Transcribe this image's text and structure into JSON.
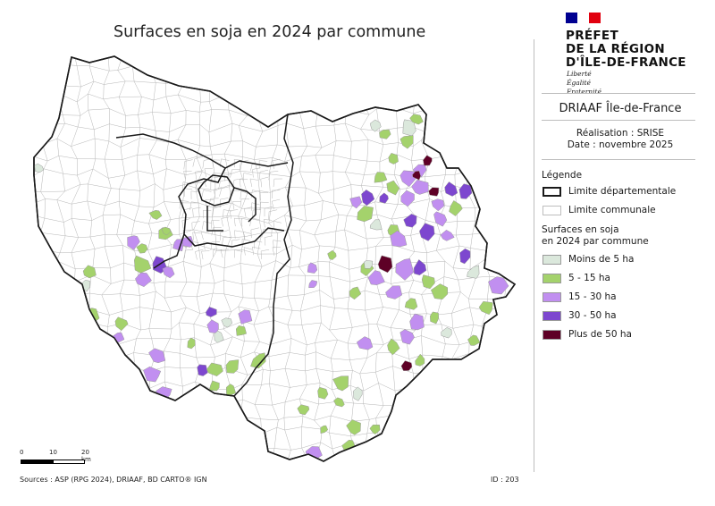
{
  "title": "Surfaces en soja en 2024 par commune",
  "header": {
    "prefet_lines": [
      "PRÉFET",
      "DE LA RÉGION",
      "D'ÎLE-DE-FRANCE"
    ],
    "motto_lines": [
      "Liberté",
      "Égalité",
      "Fraternité"
    ],
    "flag_colors": [
      "#000091",
      "#ffffff",
      "#e1000f"
    ]
  },
  "organisation": "DRIAAF Île-de-France",
  "realisation": "Réalisation : SRISE",
  "date": "Date : novembre 2025",
  "legend": {
    "title": "Légende",
    "limite_departementale": "Limite départementale",
    "limite_communale": "Limite communale",
    "subtitle_lines": [
      "Surfaces en soja",
      "en 2024 par commune"
    ],
    "classes": [
      {
        "label": "Moins de 5 ha",
        "color": "#dbe8dc"
      },
      {
        "label": "5 - 15 ha",
        "color": "#a4d26c"
      },
      {
        "label": "15 - 30 ha",
        "color": "#c18ff0"
      },
      {
        "label": "30 - 50 ha",
        "color": "#7d47cf"
      },
      {
        "label": "Plus de 50 ha",
        "color": "#5e0026"
      }
    ]
  },
  "scale": {
    "ticks": [
      "0",
      "10",
      "20 km"
    ]
  },
  "sources": "Sources : ASP (RPG 2024), DRIAAF, BD CARTO® IGN",
  "map_id": "ID : 203",
  "colors": {
    "commune_border": "#b5b5b5",
    "department_border": "#1a1a1a",
    "region_fill": "#ffffff"
  }
}
